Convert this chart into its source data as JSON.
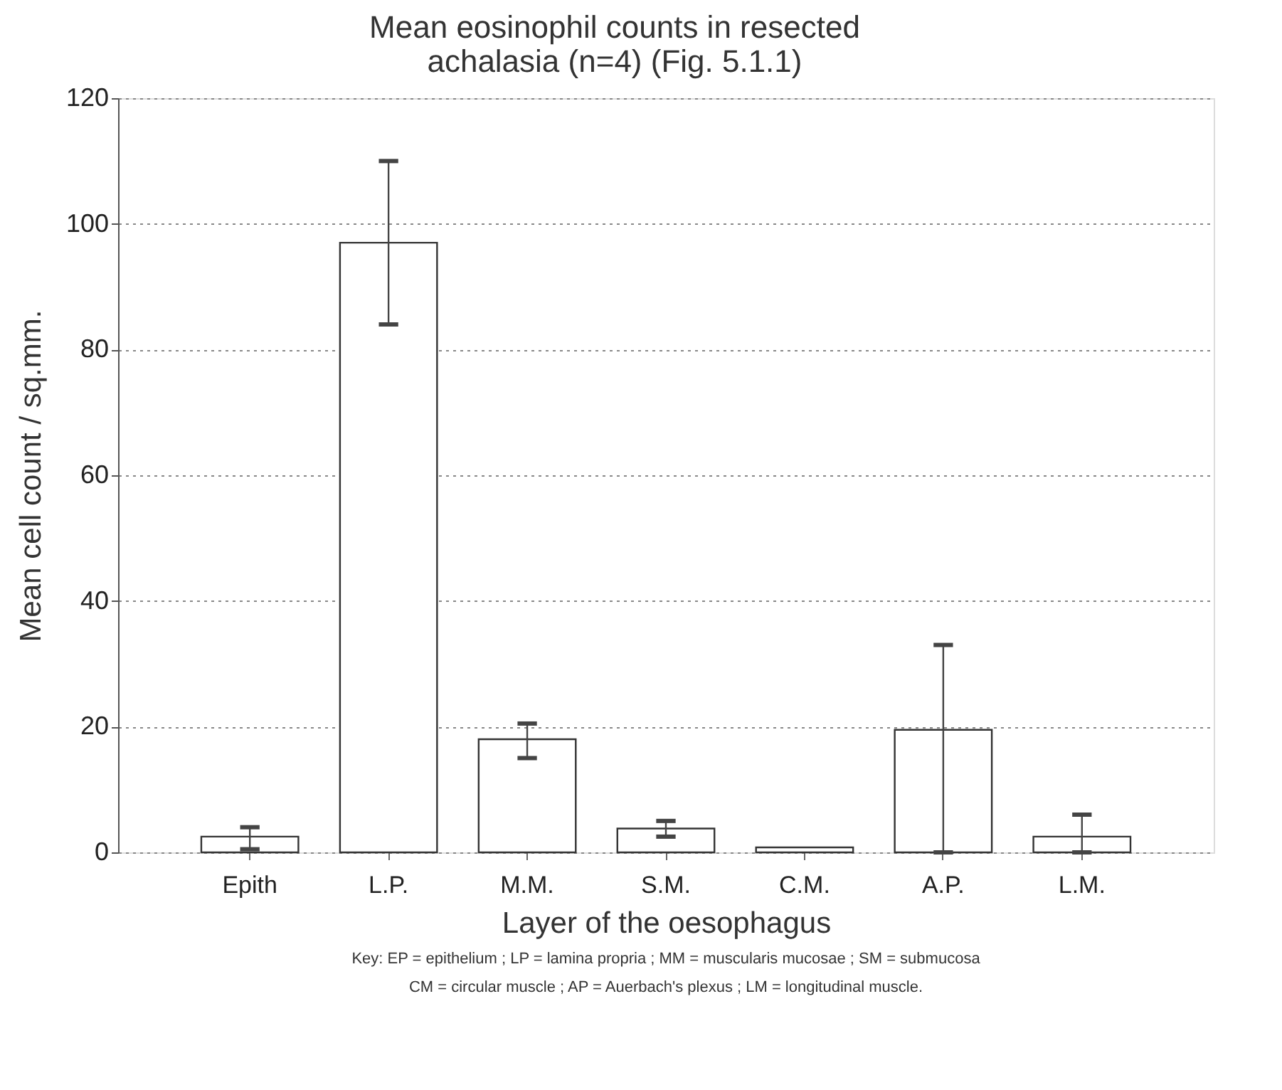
{
  "chart_data": {
    "type": "bar",
    "title": [
      "Mean eosinophil counts in resected",
      "achalasia (n=4) (Fig. 5.1.1)"
    ],
    "xlabel": "Layer of the oesophagus",
    "ylabel": "Mean cell count / sq.mm.",
    "categories": [
      "Epith",
      "L.P.",
      "M.M.",
      "S.M.",
      "C.M.",
      "A.P.",
      "L.M."
    ],
    "values": [
      2.5,
      97,
      18,
      3.8,
      0.8,
      19.5,
      2.5
    ],
    "errors": [
      [
        0.5,
        4
      ],
      [
        84,
        110
      ],
      [
        15,
        20.5
      ],
      [
        2.5,
        5
      ],
      null,
      [
        0,
        33
      ],
      [
        0,
        6
      ]
    ],
    "color": "#ffffff",
    "ylim": [
      0,
      120
    ],
    "yticks": [
      0,
      20,
      40,
      60,
      80,
      100,
      120
    ],
    "grid": "y",
    "annotations": [
      "Key: EP = epithelium ; LP = lamina propria ; MM = muscularis mucosae ; SM = submucosa",
      "CM = circular muscle ; AP = Auerbach's plexus ; LM = longitudinal muscle."
    ]
  }
}
